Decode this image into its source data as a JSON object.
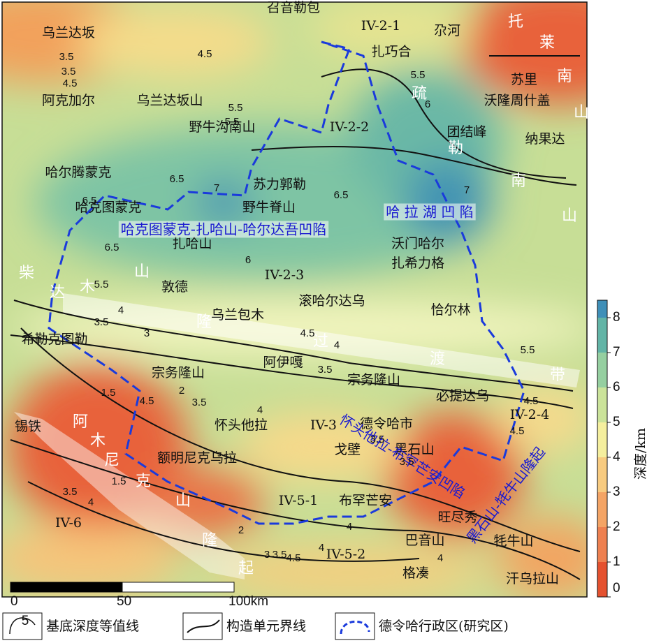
{
  "map": {
    "places": [
      "召音勒包",
      "IV-2-1",
      "尕河",
      "乌兰达坂",
      "扎巧合",
      "苏里",
      "沃隆周什盖",
      "阿克加尔",
      "乌兰达坂山",
      "野牛沟南山",
      "IV-2-2",
      "团结峰",
      "纳果达",
      "哈尔腾蒙克",
      "苏力郭勒",
      "哈克图蒙克",
      "野牛脊山",
      "扎哈山",
      "沃门哈尔",
      "扎希力格",
      "IV-2-3",
      "敦德",
      "滚哈尔达乌",
      "乌兰包木",
      "恰尔林",
      "希勒克图勒",
      "阿伊嘎",
      "宗务隆山",
      "宗务隆山",
      "必提达乌",
      "IV-2-4",
      "锡铁",
      "额明尼克乌拉",
      "怀头他拉",
      "IV-3",
      "德令哈市",
      "戈壁",
      "黑石山",
      "IV-5-1",
      "布罕芒安",
      "旺尽秀",
      "巴音山",
      "牦牛山",
      "IV-6",
      "IV-5-2",
      "格凑",
      "汗乌拉山"
    ],
    "white_letters": [
      "托",
      "莱",
      "南",
      "山",
      "疏",
      "勒",
      "南",
      "山",
      "柴",
      "达",
      "木",
      "山",
      "隆",
      "过",
      "渡",
      "带",
      "阿",
      "木",
      "尼",
      "克",
      "山",
      "隆",
      "起"
    ],
    "units": [
      "哈克图蒙克-扎哈山-哈尔达吾凹陷",
      "哈 拉 湖 凹 陷",
      "怀头他拉-布罕芒安凹陷",
      "黑石山-牦牛山隆起"
    ],
    "contour_labels": [
      4.5,
      3.5,
      3.5,
      4.5,
      5.5,
      5.5,
      6,
      5.5,
      6.5,
      7,
      6.5,
      6,
      6.5,
      6.5,
      7,
      5.5,
      4,
      3.5,
      3,
      4.5,
      4,
      3.5,
      2,
      1.5,
      3.5,
      4,
      3.5,
      4.5,
      1.5,
      2,
      4,
      4,
      3.5,
      4.5,
      4,
      3.5,
      3,
      5.5,
      4.5,
      4.5,
      3.5,
      4
    ],
    "colorbar": {
      "label": "深度/km",
      "lim": [
        0,
        8.5
      ],
      "ticks": [
        0,
        1,
        2,
        3,
        4,
        5,
        6,
        7,
        8
      ]
    },
    "scalebar": {
      "ticks": [
        {
          "value": 0,
          "label": "0"
        },
        {
          "value": 50,
          "label": "50"
        },
        {
          "value": 100,
          "label": "100km"
        }
      ]
    },
    "legend": {
      "icon": "5",
      "items": [
        "基底深度等值线",
        "构造单元界线",
        "德令哈行政区(研究区)"
      ]
    }
  }
}
